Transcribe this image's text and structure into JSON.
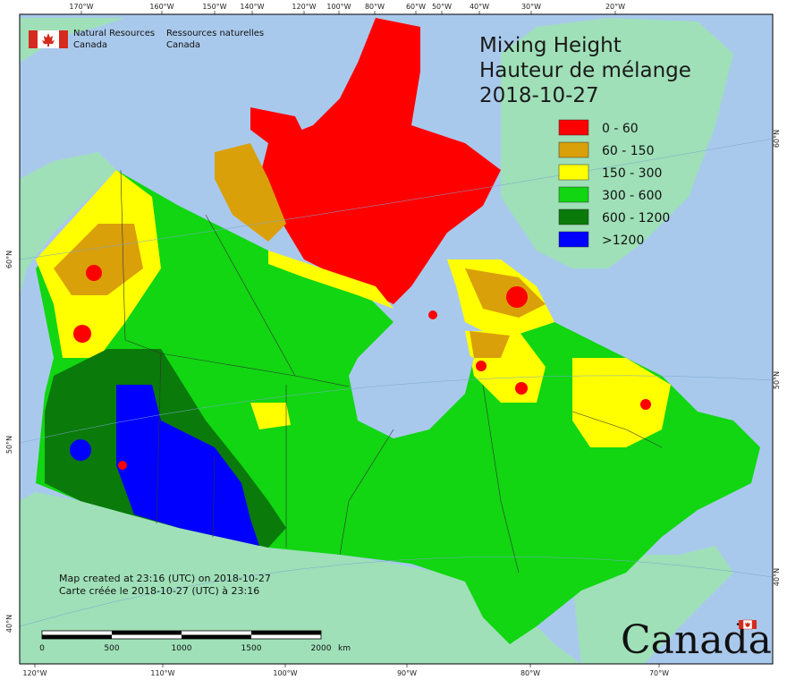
{
  "title": {
    "line1": "Mixing Height",
    "line2": "Hauteur de mélange",
    "date": "2018-10-27"
  },
  "organization": {
    "en_line1": "Natural Resources",
    "en_line2": "Canada",
    "fr_line1": "Ressources naturelles",
    "fr_line2": "Canada"
  },
  "legend": [
    {
      "label": "0 - 60",
      "color": "#ff0000"
    },
    {
      "label": "60 - 150",
      "color": "#d9a00a"
    },
    {
      "label": "150 - 300",
      "color": "#ffff00"
    },
    {
      "label": "300 - 600",
      "color": "#11d611"
    },
    {
      "label": "600 - 1200",
      "color": "#0a7a0a"
    },
    {
      "label": ">1200",
      "color": "#0000ff"
    }
  ],
  "top_ticks": [
    "170°W",
    "160°W",
    "150°W",
    "140°W",
    "120°W",
    "100°W",
    "80°W",
    "60°W",
    "50°W",
    "40°W",
    "30°W",
    "20°W"
  ],
  "bottom_ticks": [
    "120°W",
    "110°W",
    "100°W",
    "90°W",
    "80°W",
    "70°W"
  ],
  "left_ticks": [
    "60°N",
    "50°N",
    "40°N"
  ],
  "right_ticks": [
    "60°N",
    "50°N",
    "40°N"
  ],
  "scale_bar": {
    "labels": [
      "0",
      "500",
      "1000",
      "1500",
      "2000"
    ],
    "unit": "km"
  },
  "notes": {
    "en": "Map created at 23:16 (UTC) on 2018-10-27",
    "fr": "Carte créée le 2018-10-27 (UTC) à 23:16"
  },
  "wordmark": "Canada",
  "colors": {
    "ocean": "#a9c9ec",
    "land_outside": "#9fe0b8",
    "greenland": "#9fe0b8"
  }
}
